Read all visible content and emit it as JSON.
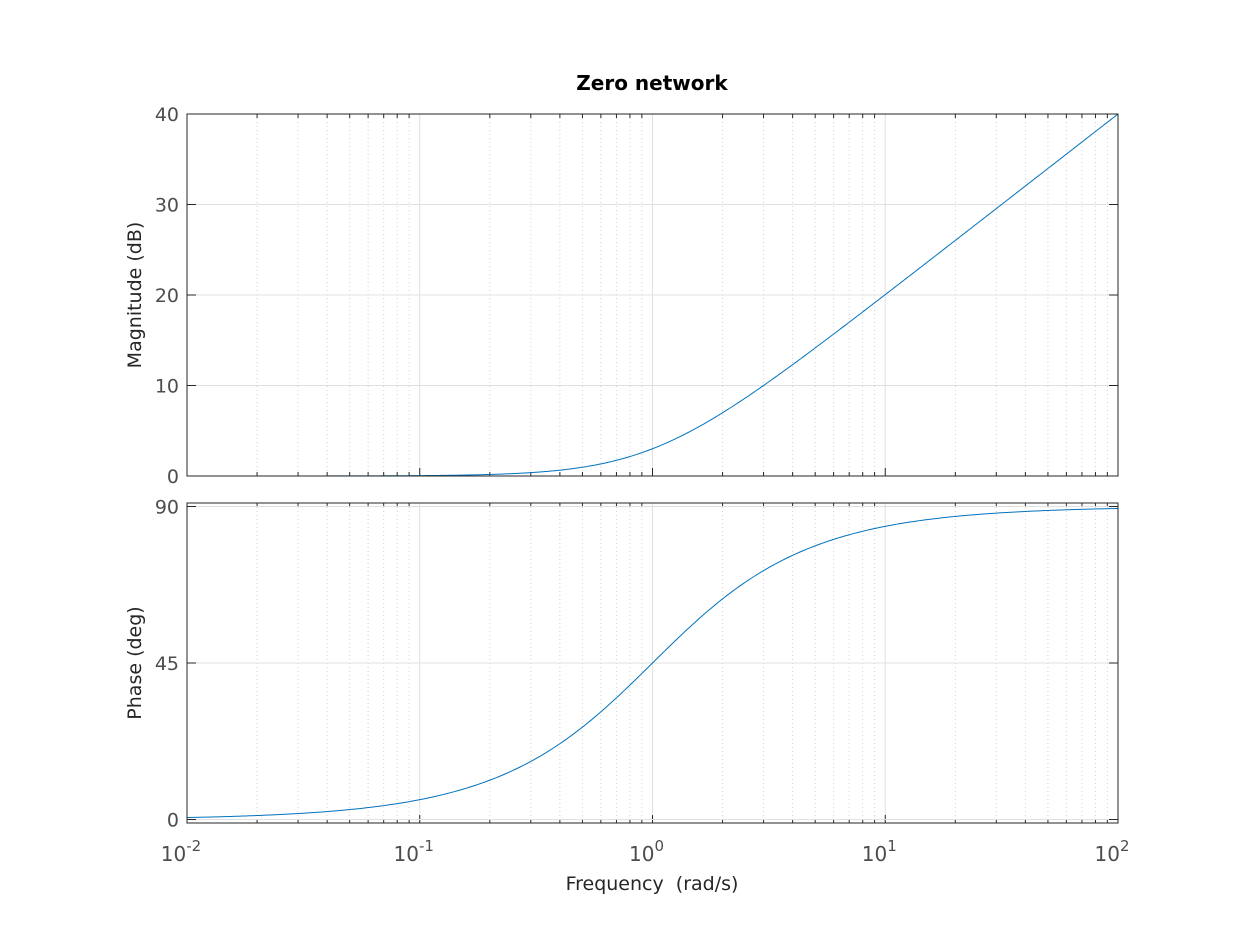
{
  "chart_data": [
    {
      "type": "line",
      "title": "Zero network",
      "xlabel": "",
      "ylabel": "Magnitude (dB)",
      "xscale": "log",
      "xlim": [
        0.01,
        100
      ],
      "ylim": [
        0,
        40
      ],
      "yticks": [
        "0",
        "10",
        "20",
        "30",
        "40"
      ],
      "grid": true,
      "color": "#0072BD",
      "series": [
        {
          "x": [
            0.01,
            0.1,
            0.2,
            0.5,
            1,
            2,
            3,
            5,
            10,
            20,
            50,
            100
          ],
          "values": [
            0.0004,
            0.043,
            0.17,
            0.97,
            3.01,
            6.99,
            10.0,
            14.15,
            20.04,
            26.03,
            33.98,
            40.0
          ]
        }
      ]
    },
    {
      "type": "line",
      "xlabel": "Frequency  (rad/s)",
      "ylabel": "Phase (deg)",
      "xscale": "log",
      "xlim": [
        0.01,
        100
      ],
      "ylim": [
        -1,
        91
      ],
      "yticks": [
        "0",
        "45",
        "90"
      ],
      "xticks": [
        {
          "base": "10",
          "exp": "-2"
        },
        {
          "base": "10",
          "exp": "-1"
        },
        {
          "base": "10",
          "exp": "0"
        },
        {
          "base": "10",
          "exp": "1"
        },
        {
          "base": "10",
          "exp": "2"
        }
      ],
      "grid": true,
      "color": "#0072BD",
      "series": [
        {
          "x": [
            0.01,
            0.1,
            0.2,
            0.5,
            1,
            2,
            3,
            5,
            10,
            20,
            50,
            100
          ],
          "values": [
            0.57,
            5.71,
            11.3,
            26.6,
            45.0,
            63.4,
            71.6,
            78.7,
            84.3,
            87.1,
            88.9,
            89.4
          ]
        }
      ]
    }
  ]
}
